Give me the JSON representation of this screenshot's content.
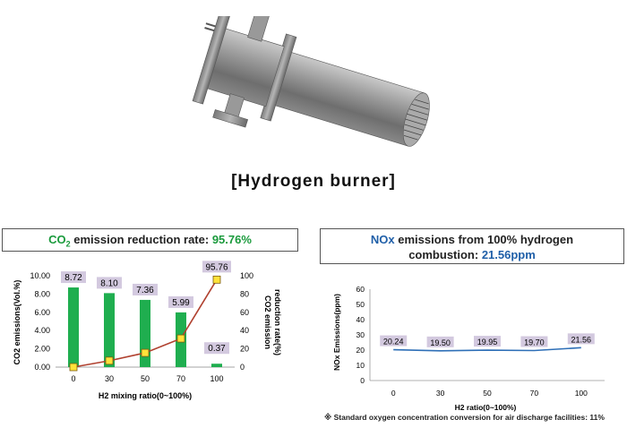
{
  "figure": {
    "caption": "[Hydrogen burner]"
  },
  "co2_panel": {
    "title_prefix": "CO",
    "title_sub": "2",
    "title_middle": " emission reduction rate: ",
    "title_value": "95.76%"
  },
  "nox_panel": {
    "title_line1_a": "NOx",
    "title_line1_b": " emissions from 100% hydrogen",
    "title_line2_a": "combustion: ",
    "title_line2_b": "21.56ppm"
  },
  "footnote": "※ Standard oxygen concentration conversion for air discharge facilities: 11%",
  "colors": {
    "bar": "#1fae4f",
    "line_red": "#b0412f",
    "marker_fill": "#ffe23a",
    "label_bg": "#d3c9df",
    "nox_line": "#2e6fb7",
    "accent_green": "#1a9a3c",
    "accent_blue": "#1f5fa8"
  },
  "chart_data": [
    {
      "type": "bar",
      "categories": [
        "0",
        "30",
        "50",
        "70",
        "100"
      ],
      "series": [
        {
          "values": [
            8.72,
            8.1,
            7.36,
            5.99,
            0.37
          ],
          "labels": [
            "8.72",
            "8.10",
            "7.36",
            "5.99",
            "0.37"
          ],
          "kind": "bar",
          "axis": "left"
        },
        {
          "values": [
            0,
            7,
            15.6,
            31.3,
            95.76
          ],
          "label_last": "95.76",
          "kind": "line",
          "axis": "right"
        }
      ],
      "xlabel": "H2 mixing ratio(0~100%)",
      "ylabel": "CO2 emissions(Vol.%)",
      "y2label_line1": "CO2 emission",
      "y2label_line2": "reduction rate(%)",
      "ylim": [
        0,
        10
      ],
      "y2lim": [
        0,
        100
      ],
      "yticks": [
        "0.00",
        "2.00",
        "4.00",
        "6.00",
        "8.00",
        "10.00"
      ],
      "y2ticks": [
        "0",
        "20",
        "40",
        "60",
        "80",
        "100"
      ]
    },
    {
      "type": "line",
      "categories": [
        "0",
        "30",
        "50",
        "70",
        "100"
      ],
      "values": [
        20.24,
        19.5,
        19.95,
        19.7,
        21.56
      ],
      "labels": [
        "20.24",
        "19.50",
        "19.95",
        "19.70",
        "21.56"
      ],
      "xlabel": "H2 ratio(0~100%)",
      "ylabel": "NOx Emissions(ppm)",
      "ylim": [
        0,
        60
      ],
      "yticks": [
        "0",
        "10",
        "20",
        "30",
        "40",
        "50",
        "60"
      ]
    }
  ]
}
